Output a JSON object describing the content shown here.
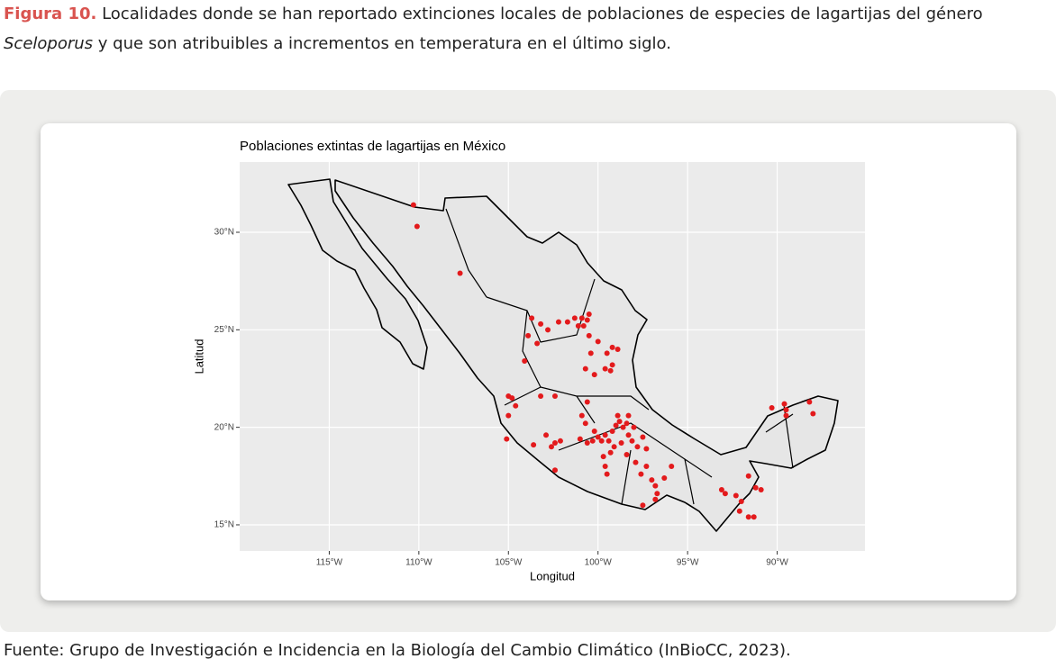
{
  "caption": {
    "label": "Figura 10.",
    "text_1": "Localidades donde se han reportado extinciones locales de poblaciones de especies de lagartijas del género",
    "species": "Sceloporus",
    "text_2": "y que son atribuibles a incrementos en temperatura en el último siglo."
  },
  "source": "Fuente: Grupo de Investigación e Incidencia en la Biología del Cambio Climático (InBioCC, 2023).",
  "chart_data": {
    "type": "scatter",
    "title": "Poblaciones extintas de lagartijas en México",
    "x_label": "Longitud",
    "y_label": "Latitud",
    "color": "#e31a1c",
    "grid": true,
    "xlim": [
      -120,
      -85.1
    ],
    "ylim": [
      13.66,
      33.6
    ],
    "xticks": [
      {
        "value": -115,
        "label": "115°W"
      },
      {
        "value": -110,
        "label": "110°W"
      },
      {
        "value": -105,
        "label": "105°W"
      },
      {
        "value": -100,
        "label": "100°W"
      },
      {
        "value": -95,
        "label": "95°W"
      },
      {
        "value": -90,
        "label": "90°W"
      }
    ],
    "yticks": [
      {
        "value": 15,
        "label": "15°N"
      },
      {
        "value": 20,
        "label": "20°N"
      },
      {
        "value": 25,
        "label": "25°N"
      },
      {
        "value": 30,
        "label": "30°N"
      }
    ],
    "x": [
      -110.3,
      -110.1,
      -107.7,
      -103.7,
      -103.2,
      -102.2,
      -101.7,
      -101.3,
      -100.9,
      -100.6,
      -100.5,
      -100.8,
      -101.1,
      -103.9,
      -103.4,
      -102.8,
      -100.5,
      -100.0,
      -99.2,
      -98.9,
      -99.5,
      -100.4,
      -104.1,
      -100.7,
      -99.6,
      -99.2,
      -99.3,
      -100.2,
      -105.0,
      -104.8,
      -104.6,
      -105.0,
      -103.2,
      -102.4,
      -100.6,
      -102.9,
      -102.4,
      -102.6,
      -102.1,
      -102.4,
      -105.1,
      -103.6,
      -100.9,
      -100.7,
      -100.2,
      -100.0,
      -99.8,
      -99.6,
      -99.4,
      -99.2,
      -99.0,
      -98.8,
      -98.6,
      -98.4,
      -98.3,
      -98.1,
      -97.8,
      -97.5,
      -97.3,
      -98.7,
      -99.1,
      -99.3,
      -99.7,
      -100.3,
      -100.6,
      -101.0,
      -98.9,
      -98.3,
      -98.0,
      -99.6,
      -99.5,
      -98.4,
      -97.9,
      -97.3,
      -97.0,
      -96.8,
      -96.7,
      -96.8,
      -97.5,
      -97.6,
      -96.3,
      -95.9,
      -93.1,
      -92.9,
      -92.3,
      -92.0,
      -92.1,
      -91.6,
      -91.3,
      -91.2,
      -90.9,
      -91.6,
      -90.3,
      -89.6,
      -89.5,
      -89.5,
      -88.2,
      -88.0
    ],
    "y": [
      31.4,
      30.3,
      27.9,
      25.6,
      25.3,
      25.4,
      25.4,
      25.6,
      25.6,
      25.5,
      25.8,
      25.2,
      25.2,
      24.7,
      24.3,
      25.0,
      24.7,
      24.4,
      24.1,
      24.0,
      23.8,
      23.8,
      23.4,
      23.0,
      23.0,
      23.2,
      22.9,
      22.7,
      21.6,
      21.5,
      21.1,
      20.6,
      21.6,
      21.6,
      21.3,
      19.6,
      19.2,
      19.0,
      19.3,
      17.8,
      19.4,
      19.1,
      20.6,
      20.2,
      19.8,
      19.5,
      19.3,
      19.6,
      19.3,
      19.8,
      20.1,
      20.3,
      20.0,
      20.2,
      19.6,
      19.3,
      19.0,
      19.5,
      18.9,
      19.2,
      19.0,
      18.7,
      18.5,
      19.3,
      19.2,
      19.4,
      20.6,
      20.6,
      20.0,
      18.0,
      17.6,
      18.6,
      18.2,
      18.0,
      17.3,
      17.0,
      16.6,
      16.3,
      16.0,
      17.6,
      17.4,
      18.0,
      16.8,
      16.6,
      16.5,
      16.2,
      15.7,
      15.4,
      15.4,
      16.9,
      16.8,
      17.5,
      21.0,
      21.2,
      20.9,
      20.6,
      21.3,
      20.7
    ]
  }
}
